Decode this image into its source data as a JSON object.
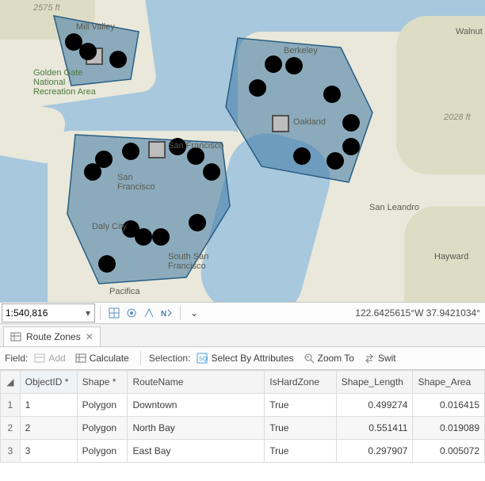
{
  "map": {
    "labels": {
      "mill_valley": "Mill Valley",
      "ggnra": "Golden Gate\nNational\nRecreation Area",
      "berkeley": "Berkeley",
      "oakland": "Oakland",
      "san_francisco": "San Francisco",
      "san_francisco_2": "San\nFrancisco",
      "daly_city": "Daly City",
      "south_sf": "South San\nFrancisco",
      "pacifica": "Pacifica",
      "san_leandro": "San Leandro",
      "hayward": "Hayward",
      "walnut": "Walnut",
      "elev_left": "2575 ft",
      "elev_right": "2028 ft"
    },
    "colors": {
      "water": "#a7c8dd",
      "land": "#e9e8da",
      "poly_fill": "rgba(62,121,164,0.55)",
      "poly_stroke": "#2a5d82"
    }
  },
  "status": {
    "scale": "1:540,816",
    "coords": "122.6425615°W 37.9421034°"
  },
  "tab": {
    "title": "Route Zones"
  },
  "toolbar": {
    "field_label": "Field:",
    "add_label": "Add",
    "calculate_label": "Calculate",
    "selection_label": "Selection:",
    "select_by_attr_label": "Select By Attributes",
    "zoom_to_label": "Zoom To",
    "switch_label": "Swit"
  },
  "table": {
    "columns": [
      "ObjectID *",
      "Shape *",
      "RouteName",
      "IsHardZone",
      "Shape_Length",
      "Shape_Area"
    ],
    "rows": [
      {
        "n": "1",
        "ObjectID": "1",
        "Shape": "Polygon",
        "RouteName": "Downtown",
        "IsHardZone": "True",
        "Shape_Length": "0.499274",
        "Shape_Area": "0.016415"
      },
      {
        "n": "2",
        "ObjectID": "2",
        "Shape": "Polygon",
        "RouteName": "North Bay",
        "IsHardZone": "True",
        "Shape_Length": "0.551411",
        "Shape_Area": "0.019089"
      },
      {
        "n": "3",
        "ObjectID": "3",
        "Shape": "Polygon",
        "RouteName": "East Bay",
        "IsHardZone": "True",
        "Shape_Length": "0.297907",
        "Shape_Area": "0.005072"
      }
    ]
  }
}
